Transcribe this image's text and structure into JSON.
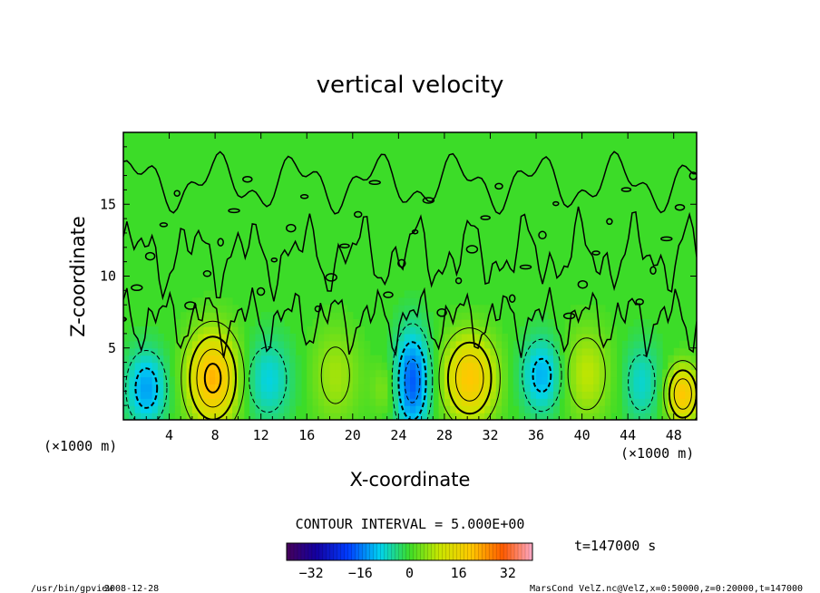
{
  "chart_data": {
    "type": "heatmap",
    "title": "vertical velocity",
    "xlabel": "X-coordinate",
    "ylabel": "Z-coordinate",
    "x_unit": "(×1000 m)",
    "y_unit": "(×1000 m)",
    "xlim": [
      0,
      50
    ],
    "ylim": [
      0,
      20
    ],
    "x_ticks": [
      4,
      8,
      12,
      16,
      20,
      24,
      28,
      32,
      36,
      40,
      44,
      48
    ],
    "y_ticks": [
      5,
      10,
      15
    ],
    "contour_interval": "CONTOUR INTERVAL = 5.000E+00",
    "time_label": "t=147000 s",
    "colorbar": {
      "min": -40,
      "max": 40,
      "ticks": [
        -32,
        -16,
        0,
        16,
        32
      ],
      "colormap": "rainbow"
    },
    "updraft_cores": [
      {
        "x": 7.8,
        "z": 2.9,
        "w": 22,
        "sx": 1.6,
        "sz": 2.3
      },
      {
        "x": 30.2,
        "z": 2.9,
        "w": 20,
        "sx": 1.6,
        "sz": 2.1
      },
      {
        "x": 48.8,
        "z": 1.8,
        "w": 20,
        "sx": 1.0,
        "sz": 1.4
      },
      {
        "x": 40.4,
        "z": 3.2,
        "w": 9,
        "sx": 1.5,
        "sz": 2.3
      },
      {
        "x": 18.5,
        "z": 3.1,
        "w": 7,
        "sx": 1.5,
        "sz": 2.4
      },
      {
        "x": 22.8,
        "z": 2.2,
        "w": 5,
        "sx": 0.8,
        "sz": 1.3
      }
    ],
    "downdraft_cores": [
      {
        "x": 25.2,
        "z": 2.7,
        "w": -18,
        "sx": 1.1,
        "sz": 2.5
      },
      {
        "x": 2.0,
        "z": 2.2,
        "w": -13,
        "sx": 1.3,
        "sz": 1.9
      },
      {
        "x": 36.5,
        "z": 3.1,
        "w": -12,
        "sx": 1.3,
        "sz": 1.9
      },
      {
        "x": 12.6,
        "z": 2.8,
        "w": -9,
        "sx": 1.5,
        "sz": 2.1
      },
      {
        "x": 45.2,
        "z": 2.6,
        "w": -8,
        "sx": 1.2,
        "sz": 2.0
      }
    ]
  },
  "footer": {
    "program": "/usr/bin/gpview",
    "date": "2008-12-28",
    "source": "MarsCond_VelZ.nc@VelZ,x=0:50000,z=0:20000,t=147000"
  }
}
